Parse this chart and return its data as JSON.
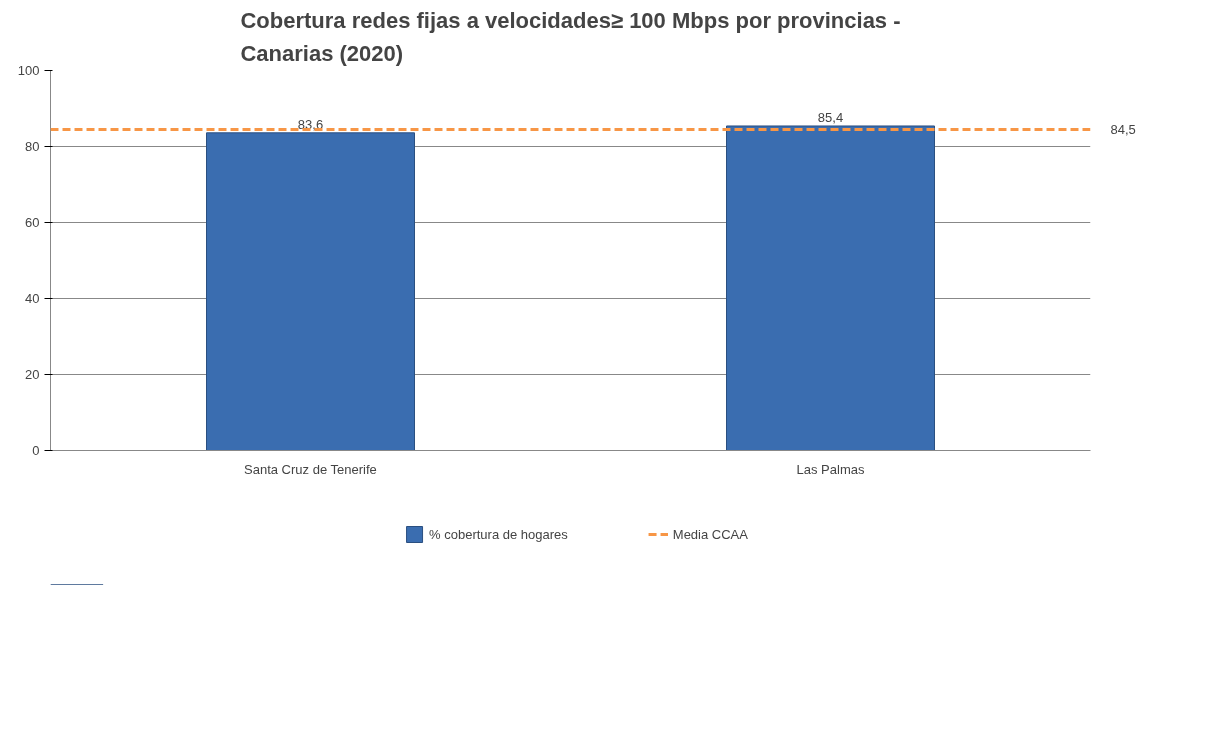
{
  "chart_data": {
    "type": "bar",
    "title": "Cobertura redes fijas a velocidades≥ 100 Mbps por provincias -\nCanarias (2020)",
    "categories": [
      "Santa Cruz de Tenerife",
      "Las Palmas"
    ],
    "series": [
      {
        "name": "% cobertura de hogares",
        "color": "#3a6db0",
        "values": [
          83.6,
          85.4
        ],
        "value_labels": [
          "83,6",
          "85,4"
        ]
      }
    ],
    "ref_lines": [
      {
        "axis": "y",
        "value": 84.5,
        "label": "Media CCAA",
        "color": "#f79646",
        "line_style": "dashed"
      }
    ],
    "annotations": [
      "84,5"
    ],
    "ylim": [
      0,
      100
    ],
    "yticks": [
      0,
      20,
      40,
      60,
      80,
      100
    ],
    "grid": "y",
    "legend": "bottom"
  }
}
